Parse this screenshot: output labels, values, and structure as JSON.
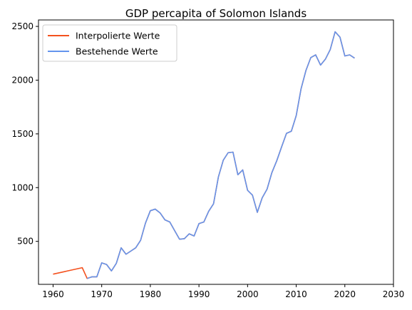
{
  "chart_data": {
    "type": "line",
    "title": "GDP percapita of Solomon Islands",
    "xlabel": "",
    "ylabel": "",
    "xlim": [
      1957,
      2030
    ],
    "ylim": [
      100,
      2560
    ],
    "xticks": [
      1960,
      1970,
      1980,
      1990,
      2000,
      2010,
      2020,
      2030
    ],
    "yticks": [
      500,
      1000,
      1500,
      2000,
      2500
    ],
    "grid": false,
    "legend_position": "top-left",
    "series": [
      {
        "name": "Interpolierte Werte",
        "color": "#f4511e",
        "x": [
          1960,
          1961,
          1962,
          1963,
          1964,
          1965,
          1966,
          1967,
          1968,
          1969,
          1970,
          1971,
          1972,
          1973,
          1974,
          1975,
          1976,
          1977,
          1978,
          1979,
          1980,
          1981,
          1982,
          1983,
          1984,
          1985,
          1986,
          1987,
          1988,
          1989,
          1990,
          1991,
          1992,
          1993,
          1994,
          1995,
          1996,
          1997,
          1998,
          1999,
          2000,
          2001,
          2002,
          2003,
          2004,
          2005,
          2006,
          2007,
          2008,
          2009,
          2010,
          2011,
          2012,
          2013,
          2014,
          2015,
          2016,
          2017,
          2018,
          2019,
          2020,
          2021,
          2022
        ],
        "y": [
          195,
          205,
          215,
          225,
          235,
          245,
          255,
          155,
          170,
          170,
          300,
          285,
          225,
          295,
          440,
          380,
          410,
          440,
          510,
          670,
          785,
          800,
          765,
          700,
          680,
          600,
          520,
          525,
          570,
          550,
          665,
          680,
          780,
          850,
          1100,
          1255,
          1325,
          1330,
          1120,
          1165,
          975,
          930,
          770,
          905,
          985,
          1140,
          1250,
          1380,
          1505,
          1525,
          1670,
          1920,
          2090,
          2210,
          2235,
          2140,
          2195,
          2285,
          2450,
          2400,
          2225,
          2235,
          2205
        ]
      },
      {
        "name": "Bestehende Werte",
        "color": "#6495ed",
        "x": [
          1967,
          1968,
          1969,
          1970,
          1971,
          1972,
          1973,
          1974,
          1975,
          1976,
          1977,
          1978,
          1979,
          1980,
          1981,
          1982,
          1983,
          1984,
          1985,
          1986,
          1987,
          1988,
          1989,
          1990,
          1991,
          1992,
          1993,
          1994,
          1995,
          1996,
          1997,
          1998,
          1999,
          2000,
          2001,
          2002,
          2003,
          2004,
          2005,
          2006,
          2007,
          2008,
          2009,
          2010,
          2011,
          2012,
          2013,
          2014,
          2015,
          2016,
          2017,
          2018,
          2019,
          2020,
          2021,
          2022
        ],
        "y": [
          155,
          170,
          170,
          300,
          285,
          225,
          295,
          440,
          380,
          410,
          440,
          510,
          670,
          785,
          800,
          765,
          700,
          680,
          600,
          520,
          525,
          570,
          550,
          665,
          680,
          780,
          850,
          1100,
          1255,
          1325,
          1330,
          1120,
          1165,
          975,
          930,
          770,
          905,
          985,
          1140,
          1250,
          1380,
          1505,
          1525,
          1670,
          1920,
          2090,
          2210,
          2235,
          2140,
          2195,
          2285,
          2450,
          2400,
          2225,
          2235,
          2205
        ]
      }
    ]
  }
}
